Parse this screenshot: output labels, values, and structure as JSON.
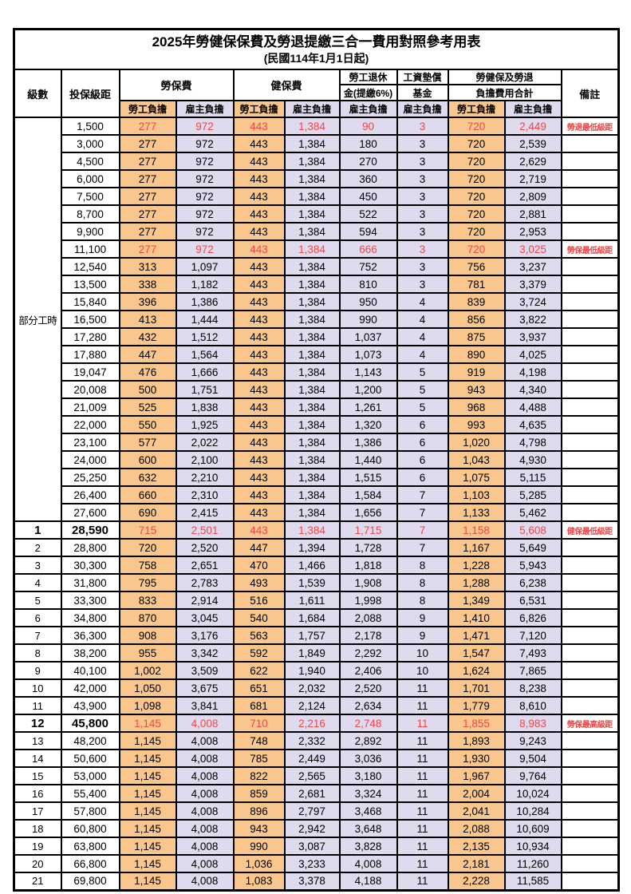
{
  "title": {
    "line1": "2025年勞健保保費及勞退提繳三合一費用對照參考用表",
    "line2": "(民國114年1月1日起)"
  },
  "header": {
    "level": "級數",
    "bracket": "投保級距",
    "labor_insurance": "勞保費",
    "health_insurance": "健保費",
    "pension_line1": "勞工退休",
    "pension_line2": "金(提繳6%)",
    "wage_fund_line1": "工資墊償",
    "wage_fund_line2": "基金",
    "total_line1": "勞健保及勞退",
    "total_line2": "負擔費用合計",
    "remark": "備註",
    "employee_share": "勞工負擔",
    "employer_share": "雇主負擔"
  },
  "part_time_label": "部分工時",
  "colors": {
    "employee_bg": "#F9C78E",
    "employer_bg": "#DFDAEE",
    "highlight_text": "#EE4747"
  },
  "rows": [
    {
      "level": "",
      "bracket": "1,500",
      "values": [
        "277",
        "972",
        "443",
        "1,384",
        "90",
        "3",
        "720",
        "2,449"
      ],
      "remark": "勞退最低級距",
      "highlight": true,
      "big": false
    },
    {
      "level": "",
      "bracket": "3,000",
      "values": [
        "277",
        "972",
        "443",
        "1,384",
        "180",
        "3",
        "720",
        "2,539"
      ],
      "remark": "",
      "highlight": false,
      "big": false
    },
    {
      "level": "",
      "bracket": "4,500",
      "values": [
        "277",
        "972",
        "443",
        "1,384",
        "270",
        "3",
        "720",
        "2,629"
      ],
      "remark": "",
      "highlight": false,
      "big": false
    },
    {
      "level": "",
      "bracket": "6,000",
      "values": [
        "277",
        "972",
        "443",
        "1,384",
        "360",
        "3",
        "720",
        "2,719"
      ],
      "remark": "",
      "highlight": false,
      "big": false
    },
    {
      "level": "",
      "bracket": "7,500",
      "values": [
        "277",
        "972",
        "443",
        "1,384",
        "450",
        "3",
        "720",
        "2,809"
      ],
      "remark": "",
      "highlight": false,
      "big": false
    },
    {
      "level": "",
      "bracket": "8,700",
      "values": [
        "277",
        "972",
        "443",
        "1,384",
        "522",
        "3",
        "720",
        "2,881"
      ],
      "remark": "",
      "highlight": false,
      "big": false
    },
    {
      "level": "",
      "bracket": "9,900",
      "values": [
        "277",
        "972",
        "443",
        "1,384",
        "594",
        "3",
        "720",
        "2,953"
      ],
      "remark": "",
      "highlight": false,
      "big": false
    },
    {
      "level": "",
      "bracket": "11,100",
      "values": [
        "277",
        "972",
        "443",
        "1,384",
        "666",
        "3",
        "720",
        "3,025"
      ],
      "remark": "勞保最低級距",
      "highlight": true,
      "big": false
    },
    {
      "level": "",
      "bracket": "12,540",
      "values": [
        "313",
        "1,097",
        "443",
        "1,384",
        "752",
        "3",
        "756",
        "3,237"
      ],
      "remark": "",
      "highlight": false,
      "big": false
    },
    {
      "level": "",
      "bracket": "13,500",
      "values": [
        "338",
        "1,182",
        "443",
        "1,384",
        "810",
        "3",
        "781",
        "3,379"
      ],
      "remark": "",
      "highlight": false,
      "big": false
    },
    {
      "level": "",
      "bracket": "15,840",
      "values": [
        "396",
        "1,386",
        "443",
        "1,384",
        "950",
        "4",
        "839",
        "3,724"
      ],
      "remark": "",
      "highlight": false,
      "big": false
    },
    {
      "level": "",
      "bracket": "16,500",
      "values": [
        "413",
        "1,444",
        "443",
        "1,384",
        "990",
        "4",
        "856",
        "3,822"
      ],
      "remark": "",
      "highlight": false,
      "big": false
    },
    {
      "level": "",
      "bracket": "17,280",
      "values": [
        "432",
        "1,512",
        "443",
        "1,384",
        "1,037",
        "4",
        "875",
        "3,937"
      ],
      "remark": "",
      "highlight": false,
      "big": false
    },
    {
      "level": "",
      "bracket": "17,880",
      "values": [
        "447",
        "1,564",
        "443",
        "1,384",
        "1,073",
        "4",
        "890",
        "4,025"
      ],
      "remark": "",
      "highlight": false,
      "big": false
    },
    {
      "level": "",
      "bracket": "19,047",
      "values": [
        "476",
        "1,666",
        "443",
        "1,384",
        "1,143",
        "5",
        "919",
        "4,198"
      ],
      "remark": "",
      "highlight": false,
      "big": false
    },
    {
      "level": "",
      "bracket": "20,008",
      "values": [
        "500",
        "1,751",
        "443",
        "1,384",
        "1,200",
        "5",
        "943",
        "4,340"
      ],
      "remark": "",
      "highlight": false,
      "big": false
    },
    {
      "level": "",
      "bracket": "21,009",
      "values": [
        "525",
        "1,838",
        "443",
        "1,384",
        "1,261",
        "5",
        "968",
        "4,488"
      ],
      "remark": "",
      "highlight": false,
      "big": false
    },
    {
      "level": "",
      "bracket": "22,000",
      "values": [
        "550",
        "1,925",
        "443",
        "1,384",
        "1,320",
        "6",
        "993",
        "4,635"
      ],
      "remark": "",
      "highlight": false,
      "big": false
    },
    {
      "level": "",
      "bracket": "23,100",
      "values": [
        "577",
        "2,022",
        "443",
        "1,384",
        "1,386",
        "6",
        "1,020",
        "4,798"
      ],
      "remark": "",
      "highlight": false,
      "big": false
    },
    {
      "level": "",
      "bracket": "24,000",
      "values": [
        "600",
        "2,100",
        "443",
        "1,384",
        "1,440",
        "6",
        "1,043",
        "4,930"
      ],
      "remark": "",
      "highlight": false,
      "big": false
    },
    {
      "level": "",
      "bracket": "25,250",
      "values": [
        "632",
        "2,210",
        "443",
        "1,384",
        "1,515",
        "6",
        "1,075",
        "5,115"
      ],
      "remark": "",
      "highlight": false,
      "big": false
    },
    {
      "level": "",
      "bracket": "26,400",
      "values": [
        "660",
        "2,310",
        "443",
        "1,384",
        "1,584",
        "7",
        "1,103",
        "5,285"
      ],
      "remark": "",
      "highlight": false,
      "big": false
    },
    {
      "level": "",
      "bracket": "27,600",
      "values": [
        "690",
        "2,415",
        "443",
        "1,384",
        "1,656",
        "7",
        "1,133",
        "5,462"
      ],
      "remark": "",
      "highlight": false,
      "big": false
    },
    {
      "level": "1",
      "bracket": "28,590",
      "values": [
        "715",
        "2,501",
        "443",
        "1,384",
        "1,715",
        "7",
        "1,158",
        "5,608"
      ],
      "remark": "健保最低級距",
      "highlight": true,
      "big": true
    },
    {
      "level": "2",
      "bracket": "28,800",
      "values": [
        "720",
        "2,520",
        "447",
        "1,394",
        "1,728",
        "7",
        "1,167",
        "5,649"
      ],
      "remark": "",
      "highlight": false,
      "big": false
    },
    {
      "level": "3",
      "bracket": "30,300",
      "values": [
        "758",
        "2,651",
        "470",
        "1,466",
        "1,818",
        "8",
        "1,228",
        "5,943"
      ],
      "remark": "",
      "highlight": false,
      "big": false
    },
    {
      "level": "4",
      "bracket": "31,800",
      "values": [
        "795",
        "2,783",
        "493",
        "1,539",
        "1,908",
        "8",
        "1,288",
        "6,238"
      ],
      "remark": "",
      "highlight": false,
      "big": false
    },
    {
      "level": "5",
      "bracket": "33,300",
      "values": [
        "833",
        "2,914",
        "516",
        "1,611",
        "1,998",
        "8",
        "1,349",
        "6,531"
      ],
      "remark": "",
      "highlight": false,
      "big": false
    },
    {
      "level": "6",
      "bracket": "34,800",
      "values": [
        "870",
        "3,045",
        "540",
        "1,684",
        "2,088",
        "9",
        "1,410",
        "6,826"
      ],
      "remark": "",
      "highlight": false,
      "big": false
    },
    {
      "level": "7",
      "bracket": "36,300",
      "values": [
        "908",
        "3,176",
        "563",
        "1,757",
        "2,178",
        "9",
        "1,471",
        "7,120"
      ],
      "remark": "",
      "highlight": false,
      "big": false
    },
    {
      "level": "8",
      "bracket": "38,200",
      "values": [
        "955",
        "3,342",
        "592",
        "1,849",
        "2,292",
        "10",
        "1,547",
        "7,493"
      ],
      "remark": "",
      "highlight": false,
      "big": false
    },
    {
      "level": "9",
      "bracket": "40,100",
      "values": [
        "1,002",
        "3,509",
        "622",
        "1,940",
        "2,406",
        "10",
        "1,624",
        "7,865"
      ],
      "remark": "",
      "highlight": false,
      "big": false
    },
    {
      "level": "10",
      "bracket": "42,000",
      "values": [
        "1,050",
        "3,675",
        "651",
        "2,032",
        "2,520",
        "11",
        "1,701",
        "8,238"
      ],
      "remark": "",
      "highlight": false,
      "big": false
    },
    {
      "level": "11",
      "bracket": "43,900",
      "values": [
        "1,098",
        "3,841",
        "681",
        "2,124",
        "2,634",
        "11",
        "1,779",
        "8,610"
      ],
      "remark": "",
      "highlight": false,
      "big": false
    },
    {
      "level": "12",
      "bracket": "45,800",
      "values": [
        "1,145",
        "4,008",
        "710",
        "2,216",
        "2,748",
        "11",
        "1,855",
        "8,983"
      ],
      "remark": "勞保最高級距",
      "highlight": true,
      "big": true
    },
    {
      "level": "13",
      "bracket": "48,200",
      "values": [
        "1,145",
        "4,008",
        "748",
        "2,332",
        "2,892",
        "11",
        "1,893",
        "9,243"
      ],
      "remark": "",
      "highlight": false,
      "big": false
    },
    {
      "level": "14",
      "bracket": "50,600",
      "values": [
        "1,145",
        "4,008",
        "785",
        "2,449",
        "3,036",
        "11",
        "1,930",
        "9,504"
      ],
      "remark": "",
      "highlight": false,
      "big": false
    },
    {
      "level": "15",
      "bracket": "53,000",
      "values": [
        "1,145",
        "4,008",
        "822",
        "2,565",
        "3,180",
        "11",
        "1,967",
        "9,764"
      ],
      "remark": "",
      "highlight": false,
      "big": false
    },
    {
      "level": "16",
      "bracket": "55,400",
      "values": [
        "1,145",
        "4,008",
        "859",
        "2,681",
        "3,324",
        "11",
        "2,004",
        "10,024"
      ],
      "remark": "",
      "highlight": false,
      "big": false
    },
    {
      "level": "17",
      "bracket": "57,800",
      "values": [
        "1,145",
        "4,008",
        "896",
        "2,797",
        "3,468",
        "11",
        "2,041",
        "10,284"
      ],
      "remark": "",
      "highlight": false,
      "big": false
    },
    {
      "level": "18",
      "bracket": "60,800",
      "values": [
        "1,145",
        "4,008",
        "943",
        "2,942",
        "3,648",
        "11",
        "2,088",
        "10,609"
      ],
      "remark": "",
      "highlight": false,
      "big": false
    },
    {
      "level": "19",
      "bracket": "63,800",
      "values": [
        "1,145",
        "4,008",
        "990",
        "3,087",
        "3,828",
        "11",
        "2,135",
        "10,934"
      ],
      "remark": "",
      "highlight": false,
      "big": false
    },
    {
      "level": "20",
      "bracket": "66,800",
      "values": [
        "1,145",
        "4,008",
        "1,036",
        "3,233",
        "4,008",
        "11",
        "2,181",
        "11,260"
      ],
      "remark": "",
      "highlight": false,
      "big": false
    },
    {
      "level": "21",
      "bracket": "69,800",
      "values": [
        "1,145",
        "4,008",
        "1,083",
        "3,378",
        "4,188",
        "11",
        "2,228",
        "11,585"
      ],
      "remark": "",
      "highlight": false,
      "big": false
    }
  ]
}
